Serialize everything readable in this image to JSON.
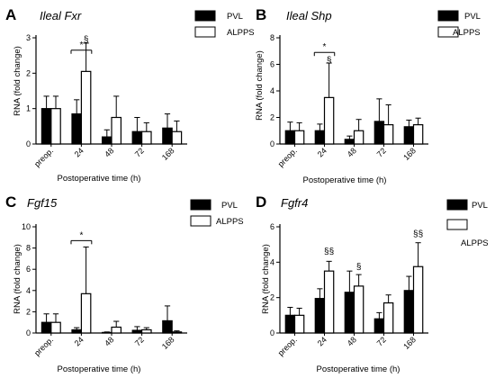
{
  "chart_data": [
    {
      "type": "bar",
      "panel_letter": "A",
      "title": "Ileal Fxr",
      "xlabel": "Postoperative time (h)",
      "ylabel": "RNA (fold change)",
      "ylim": [
        0,
        3
      ],
      "yticks": [
        "0",
        "1",
        "2",
        "3"
      ],
      "categories": [
        "preop.",
        "24",
        "48",
        "72",
        "168"
      ],
      "legend_position": "right",
      "series": [
        {
          "name": "PVL",
          "color": "#000000",
          "values": [
            1.0,
            0.85,
            0.2,
            0.35,
            0.45
          ],
          "errors": [
            0.35,
            0.4,
            0.2,
            0.4,
            0.4
          ]
        },
        {
          "name": "ALPPS",
          "color": "#ffffff",
          "values": [
            1.0,
            2.05,
            0.75,
            0.35,
            0.35
          ],
          "errors": [
            0.35,
            0.8,
            0.6,
            0.25,
            0.3
          ]
        }
      ],
      "annotations": [
        {
          "text": "*",
          "category_index": 1,
          "type": "bracket",
          "y": 2.65
        },
        {
          "text": "§",
          "category_index": 1,
          "series": 1,
          "y": 2.95
        }
      ]
    },
    {
      "type": "bar",
      "panel_letter": "B",
      "title": "Ileal Shp",
      "xlabel": "Postoperative time (h)",
      "ylabel": "RNA (fold change)",
      "ylim": [
        0,
        8
      ],
      "yticks": [
        "0",
        "2",
        "4",
        "6",
        "8"
      ],
      "categories": [
        "preop.",
        "24",
        "48",
        "72",
        "168"
      ],
      "legend_position": "right",
      "series": [
        {
          "name": "PVL",
          "color": "#000000",
          "values": [
            1.0,
            1.0,
            0.35,
            1.7,
            1.3
          ],
          "errors": [
            0.65,
            0.5,
            0.25,
            1.7,
            0.5
          ]
        },
        {
          "name": "ALPPS",
          "color": "#ffffff",
          "values": [
            1.0,
            3.5,
            1.0,
            1.45,
            1.45
          ],
          "errors": [
            0.6,
            2.6,
            0.85,
            1.5,
            0.5
          ]
        }
      ],
      "annotations": [
        {
          "text": "*",
          "category_index": 1,
          "type": "bracket",
          "y": 6.9
        },
        {
          "text": "§",
          "category_index": 1,
          "series": 1,
          "y": 6.3
        }
      ]
    },
    {
      "type": "bar",
      "panel_letter": "C",
      "title": "Fgf15",
      "xlabel": "Postoperative time (h)",
      "ylabel": "RNA (fold change)",
      "ylim": [
        0,
        10
      ],
      "yticks": [
        "0",
        "2",
        "4",
        "6",
        "8",
        "10"
      ],
      "categories": [
        "preop.",
        "24",
        "48",
        "72",
        "168"
      ],
      "legend_position": "right",
      "series": [
        {
          "name": "PVL",
          "color": "#000000",
          "values": [
            1.0,
            0.3,
            0.05,
            0.25,
            1.15
          ],
          "errors": [
            0.8,
            0.2,
            0.05,
            0.35,
            1.4
          ]
        },
        {
          "name": "ALPPS",
          "color": "#ffffff",
          "values": [
            1.0,
            3.7,
            0.55,
            0.3,
            0.1
          ],
          "errors": [
            0.8,
            4.4,
            0.55,
            0.2,
            0.1
          ]
        }
      ],
      "annotations": [
        {
          "text": "*",
          "category_index": 1,
          "type": "bracket",
          "y": 8.7
        }
      ]
    },
    {
      "type": "bar",
      "panel_letter": "D",
      "title": "Fgfr4",
      "xlabel": "Postoperative time (h)",
      "ylabel": "RNA (fold change)",
      "ylim": [
        0,
        6
      ],
      "yticks": [
        "0",
        "2",
        "4",
        "6"
      ],
      "categories": [
        "preop.",
        "24",
        "48",
        "72",
        "168"
      ],
      "legend_position": "right",
      "series": [
        {
          "name": "PVL",
          "color": "#000000",
          "values": [
            1.0,
            1.95,
            2.3,
            0.8,
            2.4
          ],
          "errors": [
            0.45,
            0.55,
            1.2,
            0.35,
            0.8
          ]
        },
        {
          "name": "ALPPS",
          "color": "#ffffff",
          "values": [
            1.0,
            3.5,
            2.65,
            1.7,
            3.75
          ],
          "errors": [
            0.4,
            0.55,
            0.65,
            0.45,
            1.35
          ]
        }
      ],
      "annotations": [
        {
          "text": "§§",
          "category_index": 1,
          "series": 1,
          "y": 4.6
        },
        {
          "text": "§",
          "category_index": 2,
          "series": 1,
          "y": 3.75
        },
        {
          "text": "§§",
          "category_index": 4,
          "series": 1,
          "y": 5.6
        }
      ]
    }
  ]
}
